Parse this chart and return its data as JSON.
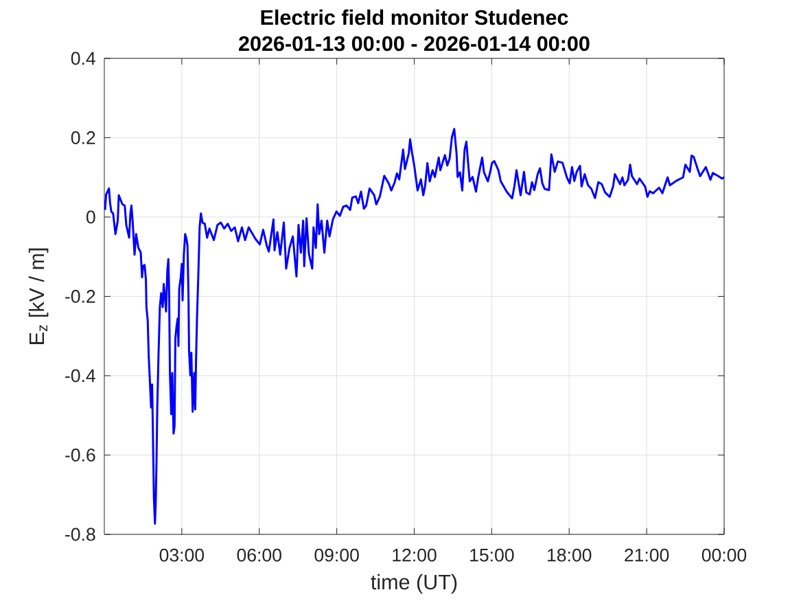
{
  "chart_data": {
    "type": "line",
    "title": "Electric field monitor Studenec",
    "subtitle": "2026-01-13 00:00 - 2026-01-14 00:00",
    "xlabel": "time (UT)",
    "ylabel": "E$_{z}$ [kV / m]",
    "xlim": [
      0,
      24
    ],
    "xticks": [
      {
        "value": 3,
        "label": "03:00"
      },
      {
        "value": 6,
        "label": "06:00"
      },
      {
        "value": 9,
        "label": "09:00"
      },
      {
        "value": 12,
        "label": "12:00"
      },
      {
        "value": 15,
        "label": "15:00"
      },
      {
        "value": 18,
        "label": "18:00"
      },
      {
        "value": 21,
        "label": "21:00"
      },
      {
        "value": 24,
        "label": "00:00"
      }
    ],
    "ylim": [
      -0.8,
      0.4
    ],
    "yticks": [
      -0.8,
      -0.6,
      -0.4,
      -0.2,
      0,
      0.2,
      0.4
    ],
    "grid": true,
    "marker": "none",
    "line_style": "solid",
    "x": [
      0,
      0.03,
      0.07,
      0.18,
      0.22,
      0.27,
      0.34,
      0.43,
      0.52,
      0.56,
      0.7,
      0.79,
      0.85,
      0.96,
      1.01,
      1.05,
      1.1,
      1.17,
      1.23,
      1.32,
      1.41,
      1.46,
      1.5,
      1.56,
      1.61,
      1.63,
      1.68,
      1.72,
      1.77,
      1.81,
      1.85,
      1.88,
      1.92,
      1.96,
      1.99,
      2.02,
      2.05,
      2.1,
      2.15,
      2.2,
      2.26,
      2.3,
      2.35,
      2.39,
      2.44,
      2.48,
      2.51,
      2.54,
      2.59,
      2.63,
      2.68,
      2.72,
      2.75,
      2.79,
      2.84,
      2.87,
      2.9,
      2.96,
      3.0,
      3.03,
      3.08,
      3.13,
      3.18,
      3.22,
      3.26,
      3.28,
      3.33,
      3.37,
      3.42,
      3.48,
      3.52,
      3.55,
      3.59,
      3.64,
      3.69,
      3.74,
      3.8,
      3.89,
      3.98,
      4.07,
      4.24,
      4.38,
      4.51,
      4.64,
      4.78,
      4.91,
      5.05,
      5.18,
      5.33,
      5.45,
      5.59,
      5.85,
      6.02,
      6.15,
      6.29,
      6.37,
      6.55,
      6.59,
      6.7,
      6.81,
      6.95,
      7.04,
      7.17,
      7.3,
      7.44,
      7.52,
      7.61,
      7.7,
      7.74,
      7.83,
      7.92,
      8.05,
      8.1,
      8.19,
      8.26,
      8.32,
      8.41,
      8.52,
      8.63,
      8.72,
      8.85,
      8.99,
      9.12,
      9.25,
      9.38,
      9.52,
      9.6,
      9.74,
      9.83,
      9.94,
      10.05,
      10.14,
      10.27,
      10.45,
      10.53,
      10.67,
      10.84,
      11.02,
      11.11,
      11.24,
      11.33,
      11.42,
      11.57,
      11.64,
      11.79,
      11.84,
      11.91,
      12.0,
      12.13,
      12.26,
      12.35,
      12.42,
      12.51,
      12.6,
      12.71,
      12.8,
      12.95,
      13.01,
      13.13,
      13.19,
      13.28,
      13.37,
      13.46,
      13.55,
      13.64,
      13.68,
      13.77,
      13.86,
      13.95,
      14.02,
      14.08,
      14.15,
      14.26,
      14.39,
      14.48,
      14.63,
      14.7,
      14.85,
      14.94,
      15.01,
      15.1,
      15.26,
      15.35,
      15.58,
      15.79,
      15.88,
      15.96,
      16.12,
      16.25,
      16.34,
      16.47,
      16.56,
      16.65,
      16.78,
      16.87,
      16.96,
      17.05,
      17.22,
      17.31,
      17.44,
      17.56,
      17.74,
      17.91,
      18.02,
      18.11,
      18.2,
      18.29,
      18.42,
      18.48,
      18.6,
      18.73,
      18.86,
      19.0,
      19.13,
      19.26,
      19.39,
      19.57,
      19.7,
      19.77,
      19.97,
      20.06,
      20.14,
      20.28,
      20.36,
      20.43,
      20.63,
      20.72,
      20.94,
      21.03,
      21.12,
      21.25,
      21.48,
      21.61,
      21.81,
      21.9,
      22.14,
      22.41,
      22.5,
      22.67,
      22.74,
      22.82,
      22.98,
      23.07,
      23.29,
      23.47,
      23.56,
      23.78,
      23.92,
      24.0
    ],
    "series": [
      {
        "color": "#0000ff",
        "values": [
          0.04,
          0.02,
          0.057,
          0.072,
          0.037,
          0.014,
          0.009,
          -0.043,
          -0.009,
          0.055,
          0.032,
          0.029,
          -0.02,
          -0.052,
          0.009,
          0.029,
          -0.014,
          -0.095,
          -0.043,
          -0.078,
          -0.089,
          -0.152,
          -0.123,
          -0.121,
          -0.158,
          -0.227,
          -0.261,
          -0.353,
          -0.422,
          -0.48,
          -0.422,
          -0.537,
          -0.709,
          -0.773,
          -0.721,
          -0.617,
          -0.48,
          -0.342,
          -0.227,
          -0.192,
          -0.227,
          -0.169,
          -0.204,
          -0.238,
          -0.135,
          -0.106,
          -0.192,
          -0.393,
          -0.497,
          -0.393,
          -0.546,
          -0.526,
          -0.307,
          -0.279,
          -0.256,
          -0.325,
          -0.181,
          -0.152,
          -0.118,
          -0.21,
          -0.095,
          -0.043,
          -0.055,
          -0.072,
          -0.204,
          -0.336,
          -0.399,
          -0.342,
          -0.491,
          -0.393,
          -0.485,
          -0.365,
          -0.25,
          -0.146,
          -0.026,
          0.009,
          -0.014,
          -0.017,
          -0.052,
          -0.029,
          -0.058,
          -0.02,
          -0.014,
          -0.029,
          -0.017,
          -0.035,
          -0.026,
          -0.061,
          -0.026,
          -0.058,
          -0.026,
          -0.055,
          -0.069,
          -0.032,
          -0.072,
          -0.087,
          -0.006,
          -0.084,
          -0.038,
          -0.095,
          -0.014,
          -0.13,
          -0.078,
          -0.049,
          -0.15,
          -0.02,
          -0.09,
          -0.009,
          -0.124,
          -0.003,
          -0.092,
          -0.13,
          -0.026,
          -0.078,
          0.032,
          -0.043,
          -0.009,
          -0.09,
          -0.009,
          -0.049,
          -0.006,
          0.014,
          0.003,
          0.026,
          0.029,
          0.018,
          0.049,
          0.052,
          0.035,
          0.064,
          0.021,
          0.029,
          0.072,
          0.055,
          0.032,
          0.052,
          0.104,
          0.084,
          0.067,
          0.087,
          0.11,
          0.095,
          0.17,
          0.121,
          0.161,
          0.196,
          0.164,
          0.13,
          0.067,
          0.095,
          0.055,
          0.078,
          0.136,
          0.09,
          0.118,
          0.101,
          0.15,
          0.118,
          0.144,
          0.156,
          0.13,
          0.147,
          0.202,
          0.222,
          0.159,
          0.101,
          0.113,
          0.067,
          0.17,
          0.19,
          0.141,
          0.09,
          0.101,
          0.064,
          0.101,
          0.15,
          0.113,
          0.09,
          0.113,
          0.136,
          0.141,
          0.118,
          0.09,
          0.064,
          0.047,
          0.078,
          0.118,
          0.055,
          0.114,
          0.062,
          0.057,
          0.088,
          0.068,
          0.108,
          0.123,
          0.085,
          0.071,
          0.068,
          0.158,
          0.114,
          0.14,
          0.137,
          0.1,
          0.085,
          0.126,
          0.091,
          0.114,
          0.129,
          0.077,
          0.108,
          0.08,
          0.071,
          0.048,
          0.088,
          0.083,
          0.062,
          0.051,
          0.077,
          0.108,
          0.083,
          0.1,
          0.08,
          0.094,
          0.132,
          0.103,
          0.083,
          0.097,
          0.077,
          0.051,
          0.065,
          0.06,
          0.074,
          0.06,
          0.1,
          0.08,
          0.091,
          0.1,
          0.132,
          0.114,
          0.155,
          0.152,
          0.12,
          0.103,
          0.126,
          0.094,
          0.111,
          0.103,
          0.097,
          0.1
        ]
      }
    ]
  }
}
